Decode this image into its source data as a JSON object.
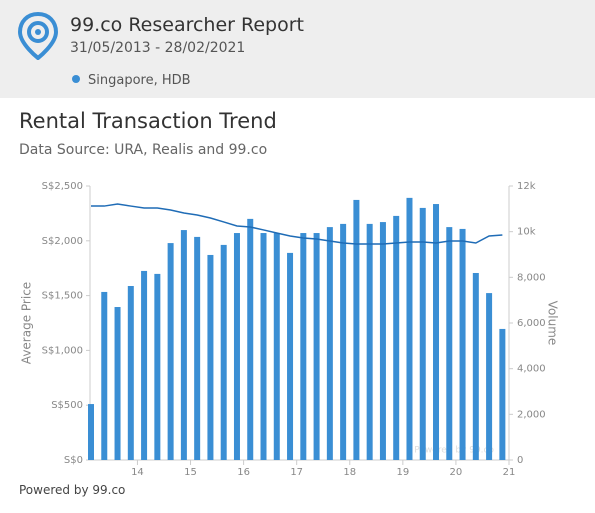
{
  "header": {
    "title": "99.co Researcher Report",
    "date_range": "31/05/2013 - 28/02/2021",
    "legend_label": "Singapore, HDB"
  },
  "footer": "Powered by 99.co",
  "chart_data": {
    "type": "bar_line",
    "title": "Rental Transaction Trend",
    "subtitle": "Data Source: URA, Realis and 99.co",
    "watermark": "Powered by 99.co",
    "y_label": "Average Price",
    "y2_label": "Volume",
    "x": [
      13.125,
      13.375,
      13.625,
      13.875,
      14.125,
      14.375,
      14.625,
      14.875,
      15.125,
      15.375,
      15.625,
      15.875,
      16.125,
      16.375,
      16.625,
      16.875,
      17.125,
      17.375,
      17.625,
      17.875,
      18.125,
      18.375,
      18.625,
      18.875,
      19.125,
      19.375,
      19.625,
      19.875,
      20.125,
      20.375,
      20.625,
      20.875
    ],
    "xlim": [
      13.125,
      21
    ],
    "xticks": [
      14,
      15,
      16,
      17,
      18,
      19,
      20,
      21
    ],
    "series": [
      {
        "kind": "bar",
        "axis": "y2",
        "color": "#3a8ed4",
        "values": [
          2450,
          7360,
          6700,
          7620,
          8280,
          8150,
          9500,
          10070,
          9770,
          8980,
          9420,
          9940,
          10560,
          9940,
          9940,
          9070,
          9940,
          9940,
          10200,
          10340,
          11390,
          10340,
          10420,
          10690,
          11480,
          11040,
          11210,
          10200,
          10120,
          8190,
          7310,
          5740
        ]
      },
      {
        "kind": "line",
        "axis": "y",
        "color": "#1f6cb6",
        "values": [
          2317,
          2317,
          2336,
          2317,
          2299,
          2299,
          2281,
          2254,
          2235,
          2208,
          2172,
          2135,
          2126,
          2099,
          2071,
          2044,
          2026,
          2016,
          1998,
          1980,
          1971,
          1971,
          1971,
          1980,
          1989,
          1989,
          1980,
          1998,
          1998,
          1980,
          2044,
          2053
        ]
      }
    ],
    "ylim": [
      0,
      2500
    ],
    "yticks": [
      {
        "value": 0,
        "label": "S$0"
      },
      {
        "value": 500,
        "label": "S$500"
      },
      {
        "value": 1000,
        "label": "S$1,000"
      },
      {
        "value": 1500,
        "label": "S$1,500"
      },
      {
        "value": 2000,
        "label": "S$2,000"
      },
      {
        "value": 2500,
        "label": "S$2,500"
      }
    ],
    "y2lim": [
      0,
      12000
    ],
    "y2ticks": [
      0,
      {
        "value": 2000,
        "label": "2,000"
      },
      {
        "value": 4000,
        "label": "4,000"
      },
      {
        "value": 6000,
        "label": "6,000"
      },
      {
        "value": 8000,
        "label": "8,000"
      },
      {
        "value": 10000,
        "label": "10k"
      },
      {
        "value": 12000,
        "label": "12k"
      }
    ]
  }
}
